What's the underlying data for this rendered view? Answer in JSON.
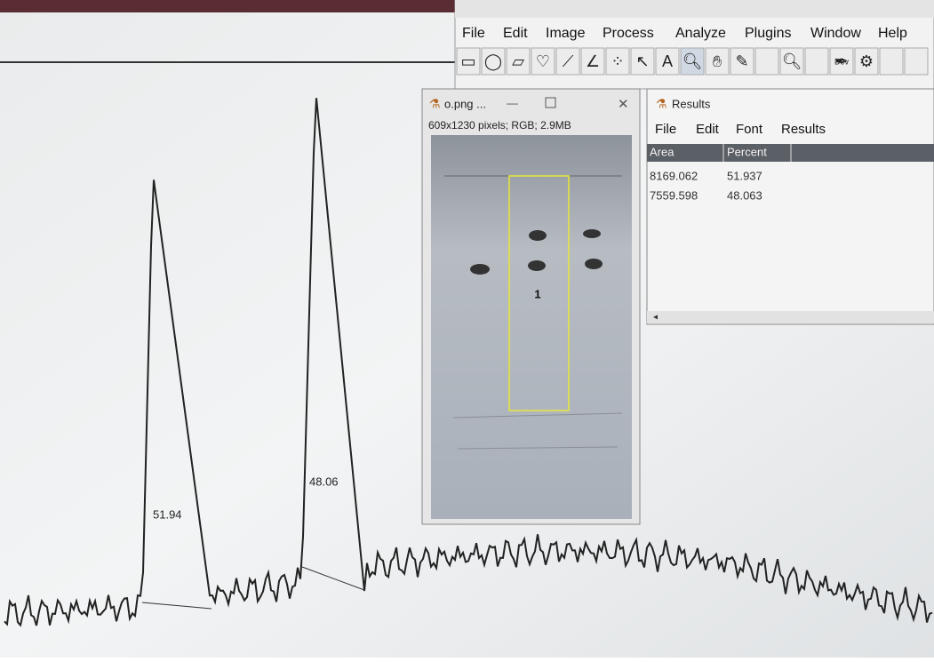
{
  "imagej": {
    "menu": [
      "File",
      "Edit",
      "Image",
      "Process",
      "Analyze",
      "Plugins",
      "Window",
      "Help"
    ],
    "toolbar_label": "Dev"
  },
  "image_window": {
    "title": "o.png ...",
    "info": "609x1230 pixels; RGB; 2.9MB",
    "roi_label": "1"
  },
  "results_window": {
    "title": "Results",
    "menu": [
      "File",
      "Edit",
      "Font",
      "Results"
    ],
    "table": {
      "columns": [
        "Area",
        "Percent"
      ],
      "rows": [
        [
          "8169.062",
          "51.937"
        ],
        [
          "7559.598",
          "48.063"
        ]
      ]
    }
  },
  "plot": {
    "peak_labels": [
      "51.94",
      "48.06"
    ]
  }
}
